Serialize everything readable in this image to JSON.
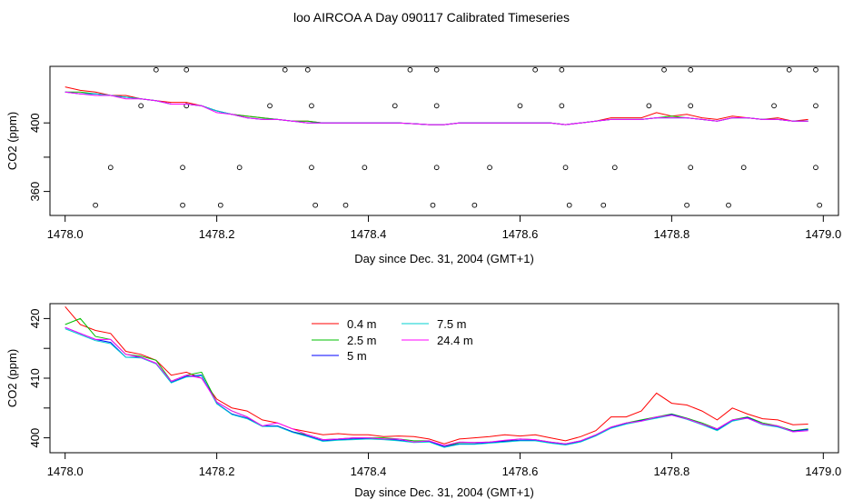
{
  "title": "loo AIRCOA A  Day 090117  Calibrated Timeseries",
  "colors": {
    "0.4 m": "#ff0000",
    "2.5 m": "#00c000",
    "5 m": "#0000ff",
    "7.5 m": "#00d0d0",
    "24.4 m": "#ff00ff"
  },
  "chart_data": [
    {
      "type": "line",
      "xlabel": "Day since Dec. 31, 2004 (GMT+1)",
      "ylabel": "CO2 (ppm)",
      "xlim": [
        1477.98,
        1479.02
      ],
      "ylim": [
        346,
        433
      ],
      "xticks": [
        1478.0,
        1478.2,
        1478.4,
        1478.6,
        1478.8,
        1479.0
      ],
      "xtick_labels": [
        "1478.0",
        "1478.2",
        "1478.4",
        "1478.6",
        "1478.8",
        "1479.0"
      ],
      "yticks": [
        360,
        380,
        400
      ],
      "ytick_labels": [
        "360",
        "",
        "400"
      ],
      "x": [
        1478.0,
        1478.02,
        1478.04,
        1478.06,
        1478.08,
        1478.1,
        1478.12,
        1478.14,
        1478.16,
        1478.18,
        1478.2,
        1478.22,
        1478.24,
        1478.26,
        1478.28,
        1478.3,
        1478.32,
        1478.34,
        1478.36,
        1478.38,
        1478.4,
        1478.42,
        1478.44,
        1478.46,
        1478.48,
        1478.5,
        1478.52,
        1478.54,
        1478.56,
        1478.58,
        1478.6,
        1478.62,
        1478.64,
        1478.66,
        1478.68,
        1478.7,
        1478.72,
        1478.74,
        1478.76,
        1478.78,
        1478.8,
        1478.82,
        1478.84,
        1478.86,
        1478.88,
        1478.9,
        1478.92,
        1478.94,
        1478.96,
        1478.98
      ],
      "series": [
        {
          "color": "#ff0000",
          "values": [
            421,
            419,
            418,
            416,
            416,
            414,
            413,
            412,
            412,
            410,
            407,
            405,
            404,
            403,
            402,
            401,
            401,
            400,
            400,
            400,
            400,
            400,
            400,
            399.5,
            399,
            399,
            400,
            400,
            400,
            400,
            400,
            400,
            400,
            399,
            400,
            401,
            403,
            403,
            403,
            406,
            404,
            405,
            403,
            402,
            404,
            403,
            402,
            403,
            401,
            402
          ]
        },
        {
          "color": "#00c000",
          "values": [
            418,
            418,
            417,
            416,
            415,
            414,
            413,
            411,
            411,
            410,
            407,
            405,
            404,
            403,
            402,
            401,
            401,
            400,
            400,
            400,
            400,
            400,
            400,
            399.5,
            399,
            399,
            400,
            400,
            400,
            400,
            400,
            400,
            400,
            399,
            400,
            401,
            402,
            402,
            402,
            403,
            404,
            403,
            402,
            401,
            403,
            403,
            402,
            402,
            401,
            401
          ]
        },
        {
          "color": "#0000ff",
          "values": [
            418,
            417,
            417,
            416,
            415,
            414,
            413,
            411,
            411,
            410,
            407,
            405,
            403,
            402,
            402,
            401,
            400,
            400,
            400,
            400,
            400,
            400,
            400,
            399.5,
            399,
            399,
            400,
            400,
            400,
            400,
            400,
            400,
            400,
            399,
            400,
            401,
            402,
            402,
            402,
            403,
            403,
            403,
            402,
            401,
            403,
            403,
            402,
            402,
            401,
            401
          ]
        },
        {
          "color": "#00d0d0",
          "values": [
            418,
            417,
            417,
            416,
            415,
            414,
            413,
            411,
            411,
            410,
            407,
            405,
            403,
            402,
            402,
            401,
            400,
            400,
            400,
            400,
            400,
            400,
            400,
            399.5,
            399,
            399,
            400,
            400,
            400,
            400,
            400,
            400,
            400,
            399,
            400,
            401,
            402,
            402,
            402,
            403,
            403,
            403,
            402,
            401,
            403,
            403,
            402,
            402,
            401,
            401
          ]
        },
        {
          "color": "#ff00ff",
          "values": [
            418,
            417,
            416,
            416,
            414,
            414,
            413,
            411,
            411,
            410,
            406,
            405,
            403,
            402,
            402,
            401,
            400,
            400,
            400,
            400,
            400,
            400,
            400,
            399.5,
            399,
            399,
            400,
            400,
            400,
            400,
            400,
            400,
            400,
            399,
            400,
            401,
            402,
            402,
            402,
            403,
            403,
            403,
            402,
            401,
            403,
            403,
            402,
            402,
            401,
            401
          ]
        }
      ],
      "points": [
        {
          "x": 1478.04,
          "y": 352
        },
        {
          "x": 1478.06,
          "y": 374
        },
        {
          "x": 1478.1,
          "y": 410
        },
        {
          "x": 1478.12,
          "y": 431
        },
        {
          "x": 1478.155,
          "y": 352
        },
        {
          "x": 1478.155,
          "y": 374
        },
        {
          "x": 1478.16,
          "y": 410
        },
        {
          "x": 1478.16,
          "y": 431
        },
        {
          "x": 1478.205,
          "y": 352
        },
        {
          "x": 1478.23,
          "y": 374
        },
        {
          "x": 1478.27,
          "y": 410
        },
        {
          "x": 1478.29,
          "y": 431
        },
        {
          "x": 1478.32,
          "y": 431
        },
        {
          "x": 1478.325,
          "y": 410
        },
        {
          "x": 1478.325,
          "y": 374
        },
        {
          "x": 1478.33,
          "y": 352
        },
        {
          "x": 1478.37,
          "y": 352
        },
        {
          "x": 1478.395,
          "y": 374
        },
        {
          "x": 1478.435,
          "y": 410
        },
        {
          "x": 1478.455,
          "y": 431
        },
        {
          "x": 1478.49,
          "y": 431
        },
        {
          "x": 1478.49,
          "y": 410
        },
        {
          "x": 1478.49,
          "y": 374
        },
        {
          "x": 1478.485,
          "y": 352
        },
        {
          "x": 1478.54,
          "y": 352
        },
        {
          "x": 1478.56,
          "y": 374
        },
        {
          "x": 1478.6,
          "y": 410
        },
        {
          "x": 1478.62,
          "y": 431
        },
        {
          "x": 1478.655,
          "y": 431
        },
        {
          "x": 1478.655,
          "y": 410
        },
        {
          "x": 1478.66,
          "y": 374
        },
        {
          "x": 1478.665,
          "y": 352
        },
        {
          "x": 1478.71,
          "y": 352
        },
        {
          "x": 1478.725,
          "y": 374
        },
        {
          "x": 1478.77,
          "y": 410
        },
        {
          "x": 1478.79,
          "y": 431
        },
        {
          "x": 1478.825,
          "y": 431
        },
        {
          "x": 1478.825,
          "y": 410
        },
        {
          "x": 1478.825,
          "y": 374
        },
        {
          "x": 1478.82,
          "y": 352
        },
        {
          "x": 1478.875,
          "y": 352
        },
        {
          "x": 1478.895,
          "y": 374
        },
        {
          "x": 1478.935,
          "y": 410
        },
        {
          "x": 1478.955,
          "y": 431
        },
        {
          "x": 1478.99,
          "y": 431
        },
        {
          "x": 1478.99,
          "y": 410
        },
        {
          "x": 1478.99,
          "y": 374
        },
        {
          "x": 1478.995,
          "y": 352
        }
      ]
    },
    {
      "type": "line",
      "xlabel": "Day since Dec. 31, 2004 (GMT+1)",
      "ylabel": "CO2 (ppm)",
      "xlim": [
        1477.98,
        1479.02
      ],
      "ylim": [
        397.5,
        422.5
      ],
      "xticks": [
        1478.0,
        1478.2,
        1478.4,
        1478.6,
        1478.8,
        1479.0
      ],
      "xtick_labels": [
        "1478.0",
        "1478.2",
        "1478.4",
        "1478.6",
        "1478.8",
        "1479.0"
      ],
      "yticks": [
        400,
        405,
        410,
        415,
        420
      ],
      "ytick_labels": [
        "400",
        "",
        "410",
        "",
        "420"
      ],
      "legend": [
        "0.4 m",
        "2.5 m",
        "5 m",
        "7.5 m",
        "24.4 m"
      ],
      "x": [
        1478.0,
        1478.02,
        1478.04,
        1478.06,
        1478.08,
        1478.1,
        1478.12,
        1478.14,
        1478.16,
        1478.18,
        1478.2,
        1478.22,
        1478.24,
        1478.26,
        1478.28,
        1478.3,
        1478.32,
        1478.34,
        1478.36,
        1478.38,
        1478.4,
        1478.42,
        1478.44,
        1478.46,
        1478.48,
        1478.5,
        1478.52,
        1478.54,
        1478.56,
        1478.58,
        1478.6,
        1478.62,
        1478.64,
        1478.66,
        1478.68,
        1478.7,
        1478.72,
        1478.74,
        1478.76,
        1478.78,
        1478.8,
        1478.82,
        1478.84,
        1478.86,
        1478.88,
        1478.9,
        1478.92,
        1478.94,
        1478.96,
        1478.98
      ],
      "series": [
        {
          "name": "0.4 m",
          "color": "#ff0000",
          "values": [
            422,
            419,
            418,
            417.5,
            414.5,
            414,
            413,
            410.5,
            411,
            410,
            406.5,
            405,
            404.5,
            403,
            402.5,
            401.5,
            401,
            400.5,
            400.7,
            400.5,
            400.5,
            400.2,
            400.3,
            400.2,
            399.8,
            399,
            399.8,
            400,
            400.2,
            400.5,
            400.3,
            400.5,
            400,
            399.5,
            400.2,
            401.2,
            403.5,
            403.5,
            404.5,
            407.5,
            405.8,
            405.5,
            404.5,
            403,
            405,
            404,
            403.2,
            403,
            402.2,
            402.3
          ]
        },
        {
          "name": "2.5 m",
          "color": "#00c000",
          "values": [
            419,
            420,
            417,
            416.5,
            414,
            413.7,
            413,
            409.5,
            410.5,
            411,
            406,
            404.5,
            403.5,
            402,
            402,
            401,
            400.5,
            399.7,
            399.8,
            400,
            400,
            400,
            399.8,
            399.5,
            399.5,
            398.5,
            399.2,
            399.2,
            399.3,
            399.5,
            399.8,
            399.7,
            399.3,
            399,
            399.5,
            400.5,
            401.8,
            402.5,
            403,
            403.5,
            404,
            403.3,
            402.5,
            401.5,
            403,
            403.5,
            402.5,
            402,
            401.2,
            401.5
          ]
        },
        {
          "name": "5 m",
          "color": "#0000ff",
          "values": [
            418.5,
            417.5,
            416.5,
            416,
            413.5,
            413.5,
            412.5,
            409.3,
            410.3,
            410.5,
            405.8,
            404,
            403.3,
            402,
            402,
            401,
            400.3,
            399.5,
            399.7,
            399.8,
            399.9,
            399.8,
            399.6,
            399.3,
            399.4,
            398.5,
            399,
            399,
            399.2,
            399.4,
            399.6,
            399.6,
            399.2,
            398.9,
            399.4,
            400.4,
            401.7,
            402.4,
            402.9,
            403.4,
            403.9,
            403.2,
            402.3,
            401.3,
            402.9,
            403.4,
            402.3,
            401.9,
            401.1,
            401.4
          ]
        },
        {
          "name": "7.5 m",
          "color": "#00d0d0",
          "values": [
            418.3,
            417.3,
            416.3,
            415.8,
            413.5,
            413.4,
            412.4,
            409.2,
            410.2,
            410.4,
            405.7,
            403.9,
            403.2,
            401.9,
            401.9,
            400.9,
            400.2,
            399.4,
            399.6,
            399.7,
            399.8,
            399.7,
            399.5,
            399.2,
            399.3,
            398.4,
            398.9,
            398.9,
            399.1,
            399.3,
            399.5,
            399.5,
            399.1,
            398.8,
            399.3,
            400.3,
            401.6,
            402.3,
            402.8,
            403.3,
            403.8,
            403.1,
            402.2,
            401.2,
            402.8,
            403.3,
            402.2,
            401.8,
            401,
            401.3
          ]
        },
        {
          "name": "24.4 m",
          "color": "#ff00ff",
          "values": [
            418.5,
            417.5,
            416.5,
            416.5,
            414,
            413.5,
            412.5,
            409.5,
            410.5,
            410,
            406,
            404.5,
            403.5,
            402,
            402.5,
            401.5,
            400.5,
            399.7,
            399.8,
            400,
            400,
            399.8,
            399.8,
            399.3,
            399.5,
            398.7,
            399.3,
            399.2,
            399.3,
            399.6,
            399.8,
            399.7,
            399.3,
            399,
            399.5,
            400.5,
            401.8,
            402.5,
            402.8,
            403.5,
            403.8,
            403.2,
            402.3,
            401.5,
            403,
            403.3,
            402.3,
            402,
            401,
            401.2
          ]
        }
      ]
    }
  ]
}
